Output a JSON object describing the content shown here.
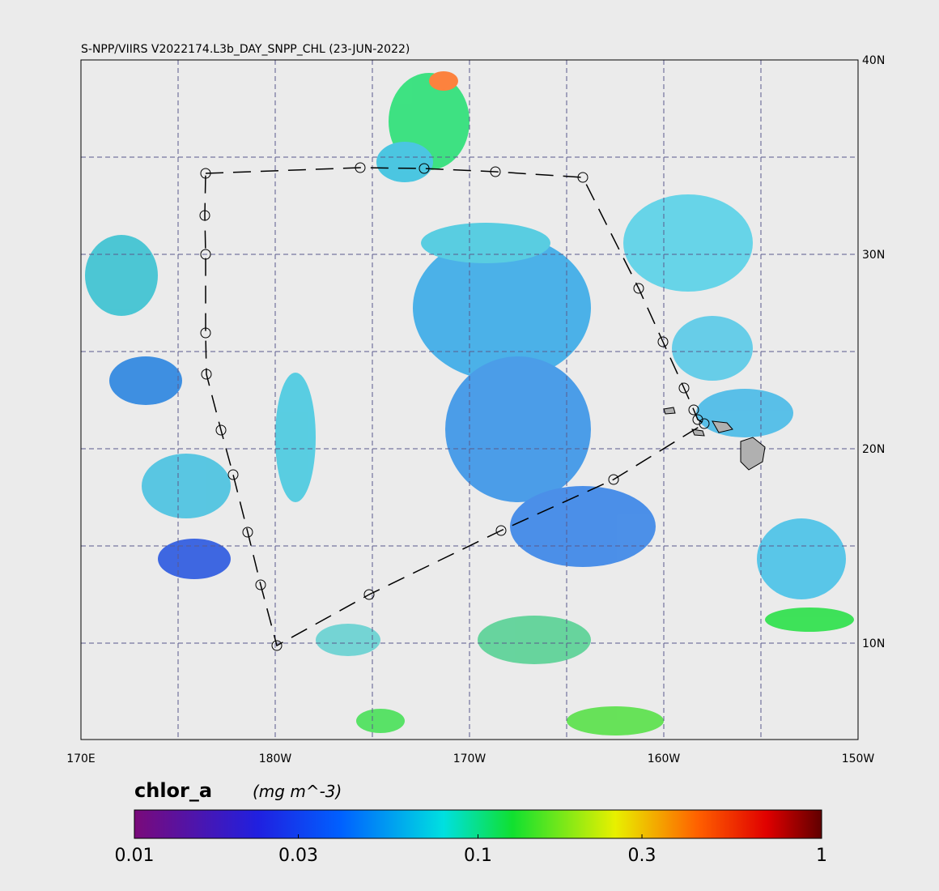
{
  "title": "S-NPP/VIIRS V2022174.L3b_DAY_SNPP_CHL (23-JUN-2022)",
  "lon_labels": [
    "170E",
    "180W",
    "170W",
    "160W",
    "150W"
  ],
  "lat_labels": [
    "40N",
    "30N",
    "20N",
    "10N"
  ],
  "colorbar": {
    "variable": "chlor_a",
    "units": "(mg m^-3)",
    "scale": "log",
    "lim": [
      0.01,
      1
    ],
    "ticks": [
      0.01,
      0.03,
      0.1,
      0.3,
      1
    ]
  }
}
